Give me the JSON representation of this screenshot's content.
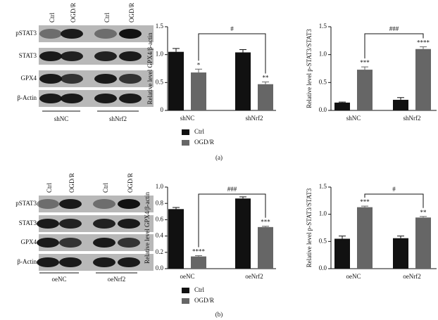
{
  "panel_labels": [
    "(a)",
    "(b)"
  ],
  "blots": [
    {
      "lanes": [
        "Ctrl",
        "OGD/R",
        "Ctrl",
        "OGD/R"
      ],
      "rows": [
        "pSTAT3",
        "STAT3",
        "GPX4",
        "β-Actin"
      ],
      "groups": [
        "shNC",
        "shNrf2"
      ]
    },
    {
      "lanes": [
        "Ctrl",
        "OGD/R",
        "Ctrl",
        "OGD/R"
      ],
      "rows": [
        "pSTAT3",
        "STAT3",
        "GPX4",
        "β-Actin"
      ],
      "groups": [
        "oeNC",
        "oeNrf2"
      ]
    }
  ],
  "chart_data": [
    {
      "type": "bar",
      "y_label": "Relative level GPX4/β-actin",
      "categories": [
        "shNC",
        "shNrf2"
      ],
      "series": [
        {
          "name": "Ctrl",
          "color": "#111111",
          "values": [
            1.05,
            1.04
          ],
          "errors": [
            0.06,
            0.05
          ]
        },
        {
          "name": "OGD/R",
          "color": "#666666",
          "values": [
            0.68,
            0.47
          ],
          "errors": [
            0.06,
            0.04
          ],
          "stars": [
            "*",
            "**"
          ]
        }
      ],
      "comparison": "#",
      "ylim": [
        0,
        1.5
      ],
      "yticks": [
        0,
        0.5,
        {
          "value": 1,
          "label": "1.0"
        },
        1.5
      ]
    },
    {
      "type": "bar",
      "y_label": "Relative level p-STAT3/STAT3",
      "categories": [
        "shNC",
        "shNrf2"
      ],
      "series": [
        {
          "color": "#111111",
          "values": [
            0.14,
            0.19
          ],
          "errors": [
            0.01,
            0.04
          ]
        },
        {
          "color": "#666666",
          "values": [
            0.73,
            1.1
          ],
          "errors": [
            0.05,
            0.04
          ],
          "stars": [
            "***",
            "****"
          ]
        }
      ],
      "comparison": "###",
      "ylim": [
        0,
        1.5
      ],
      "yticks": [
        {
          "value": 0,
          "label": "0.0"
        },
        0.5,
        {
          "value": 1,
          "label": "1.0"
        },
        1.5
      ]
    },
    {
      "type": "bar",
      "y_label": "Relative level GPX4/β-actin",
      "categories": [
        "oeNC",
        "oeNrf2"
      ],
      "series": [
        {
          "name": "Ctrl",
          "color": "#111111",
          "values": [
            0.73,
            0.86
          ],
          "errors": [
            0.02,
            0.02
          ]
        },
        {
          "name": "OGD/R",
          "color": "#666666",
          "values": [
            0.15,
            0.51
          ],
          "errors": [
            0.01,
            0.01
          ],
          "stars": [
            "****",
            "***"
          ]
        }
      ],
      "comparison": "###",
      "ylim": [
        0,
        1
      ],
      "yticks": [
        {
          "value": 0,
          "label": "0.0"
        },
        0.2,
        0.4,
        0.6,
        0.8,
        {
          "value": 1,
          "label": "1.0"
        }
      ]
    },
    {
      "type": "bar",
      "y_label": "Relative level p-STAT3/STAT3",
      "categories": [
        "oeNC",
        "oeNrf2"
      ],
      "series": [
        {
          "color": "#111111",
          "values": [
            0.55,
            0.56
          ],
          "errors": [
            0.05,
            0.04
          ]
        },
        {
          "color": "#666666",
          "values": [
            1.13,
            0.94
          ],
          "errors": [
            0.02,
            0.02
          ],
          "stars": [
            "***",
            "**"
          ]
        }
      ],
      "comparison": "#",
      "ylim": [
        0,
        1.5
      ],
      "yticks": [
        {
          "value": 0,
          "label": "0.0"
        },
        0.5,
        {
          "value": 1,
          "label": "1.0"
        },
        1.5
      ]
    }
  ]
}
